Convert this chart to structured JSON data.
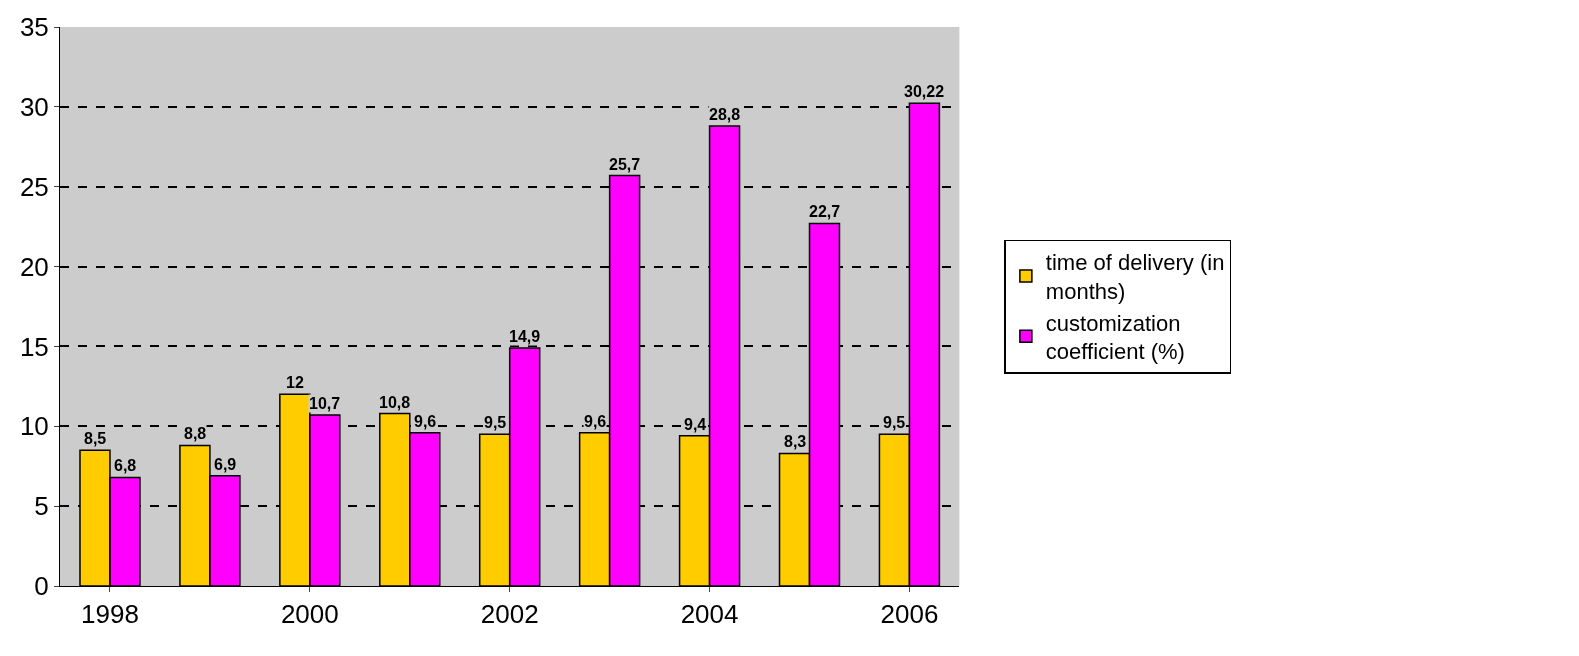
{
  "chart_data": {
    "type": "bar",
    "categories": [
      "1998",
      null,
      "2000",
      null,
      "2002",
      null,
      "2004",
      null,
      "2006"
    ],
    "series": [
      {
        "name": "time of delivery (in months)",
        "color": "#ffcc00",
        "values": [
          8.5,
          8.8,
          12,
          10.8,
          9.5,
          9.6,
          9.4,
          8.3,
          9.5
        ],
        "value_labels": [
          "8,5",
          "8,8",
          "12",
          "10,8",
          "9,5",
          "9,6",
          "9,4",
          "8,3",
          "9,5"
        ]
      },
      {
        "name": "customization coefficient (%)",
        "color": "#ff00ff",
        "values": [
          6.8,
          6.9,
          10.7,
          9.6,
          14.9,
          25.7,
          28.8,
          22.7,
          30.22
        ],
        "value_labels": [
          "6,8",
          "6,9",
          "10,7",
          "9,6",
          "14,9",
          "25,7",
          "28,8",
          "22,7",
          "30,22"
        ]
      }
    ],
    "ylim": [
      0,
      35
    ],
    "yticks": [
      0,
      5,
      10,
      15,
      20,
      25,
      30,
      35
    ],
    "grid": "y",
    "legend": "right"
  }
}
